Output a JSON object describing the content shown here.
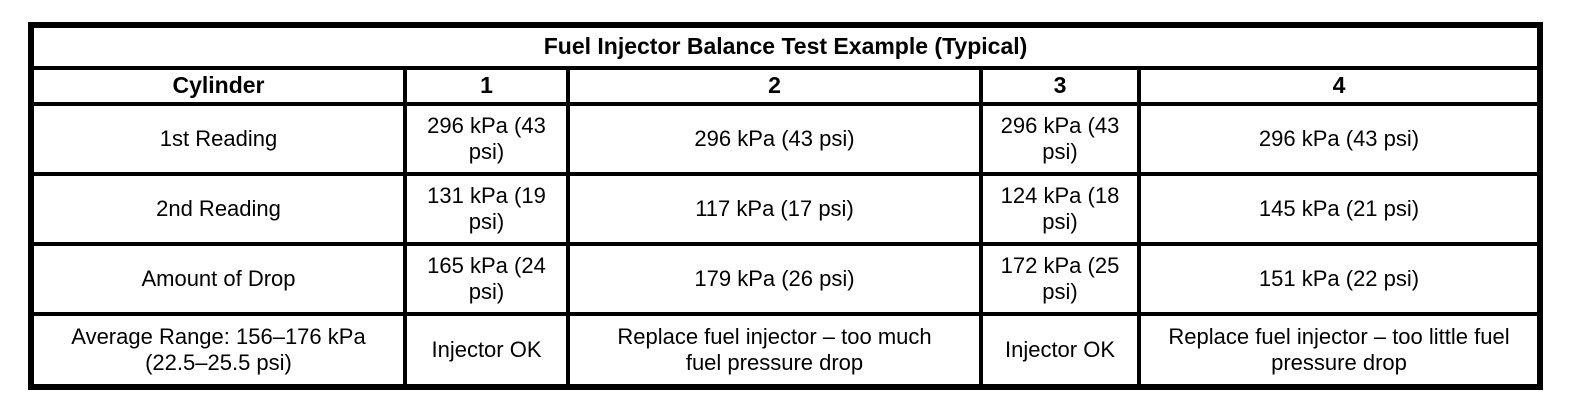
{
  "colors": {
    "background": "#ffffff",
    "border": "#000000",
    "text": "#000000"
  },
  "table": {
    "title": "Fuel Injector Balance Test Example (Typical)",
    "columns": [
      "Cylinder",
      "1",
      "2",
      "3",
      "4"
    ],
    "rows": [
      {
        "label": "1st Reading",
        "cells": [
          "296 kPa (43\npsi)",
          "296 kPa (43 psi)",
          "296 kPa (43\npsi)",
          "296 kPa (43 psi)"
        ]
      },
      {
        "label": "2nd Reading",
        "cells": [
          "131 kPa (19\npsi)",
          "117 kPa (17 psi)",
          "124 kPa (18\npsi)",
          "145 kPa (21 psi)"
        ]
      },
      {
        "label": "Amount of Drop",
        "cells": [
          "165 kPa (24\npsi)",
          "179 kPa (26 psi)",
          "172 kPa (25\npsi)",
          "151 kPa (22 psi)"
        ]
      },
      {
        "label": "Average Range: 156–176 kPa\n(22.5–25.5 psi)",
        "cells": [
          "Injector OK",
          "Replace fuel injector – too much\nfuel pressure drop",
          "Injector OK",
          "Replace fuel injector – too little fuel\npressure drop"
        ]
      }
    ]
  }
}
